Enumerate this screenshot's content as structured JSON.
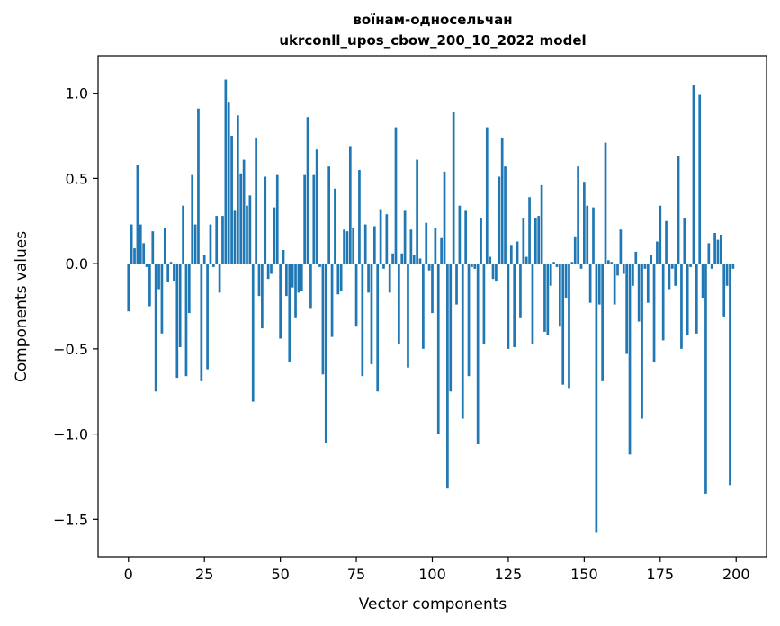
{
  "chart_data": {
    "type": "bar",
    "title_line1": "воїнам-односельчан",
    "title_line2": "ukrconll_upos_cbow_200_10_2022 model",
    "xlabel": "Vector components",
    "ylabel": "Components values",
    "xlim": [
      -10,
      210
    ],
    "ylim": [
      -1.72,
      1.22
    ],
    "xticks": [
      0,
      25,
      50,
      75,
      100,
      125,
      150,
      175,
      200
    ],
    "yticks": [
      -1.5,
      -1.0,
      -0.5,
      0.0,
      0.5,
      1.0
    ],
    "ytick_labels": [
      "−1.5",
      "−1.0",
      "−0.5",
      "0.0",
      "0.5",
      "1.0"
    ],
    "grid": false,
    "bar_color": "#1f77b4",
    "values": [
      -0.28,
      0.23,
      0.09,
      0.58,
      0.23,
      0.12,
      -0.02,
      -0.25,
      0.19,
      -0.75,
      -0.15,
      -0.41,
      0.21,
      -0.11,
      0.01,
      -0.1,
      -0.67,
      -0.49,
      0.34,
      -0.66,
      -0.29,
      0.52,
      0.23,
      0.91,
      -0.69,
      0.05,
      -0.62,
      0.23,
      -0.02,
      0.28,
      -0.17,
      0.28,
      1.08,
      0.95,
      0.75,
      0.31,
      0.87,
      0.53,
      0.61,
      0.34,
      0.4,
      -0.81,
      0.74,
      -0.19,
      -0.38,
      0.51,
      -0.09,
      -0.06,
      0.33,
      0.52,
      -0.44,
      0.08,
      -0.19,
      -0.58,
      -0.14,
      -0.32,
      -0.17,
      -0.16,
      0.52,
      0.86,
      -0.26,
      0.52,
      0.67,
      -0.02,
      -0.65,
      -1.05,
      0.57,
      -0.43,
      0.44,
      -0.18,
      -0.16,
      0.2,
      0.19,
      0.69,
      0.21,
      -0.37,
      0.55,
      -0.66,
      0.23,
      -0.17,
      -0.59,
      0.22,
      -0.75,
      0.32,
      -0.03,
      0.29,
      -0.17,
      0.06,
      0.8,
      -0.47,
      0.06,
      0.31,
      -0.61,
      0.2,
      0.05,
      0.61,
      0.03,
      -0.5,
      0.24,
      -0.04,
      -0.29,
      0.21,
      -1.0,
      0.15,
      0.54,
      -1.32,
      -0.75,
      0.89,
      -0.24,
      0.34,
      -0.91,
      0.31,
      -0.66,
      -0.02,
      -0.03,
      -1.06,
      0.27,
      -0.47,
      0.8,
      0.04,
      -0.09,
      -0.1,
      0.51,
      0.74,
      0.57,
      -0.5,
      0.11,
      -0.49,
      0.13,
      -0.32,
      0.27,
      0.04,
      0.39,
      -0.47,
      0.27,
      0.28,
      0.46,
      -0.4,
      -0.42,
      -0.13,
      0.01,
      -0.02,
      -0.37,
      -0.71,
      -0.2,
      -0.73,
      0.01,
      0.16,
      0.57,
      -0.03,
      0.48,
      0.34,
      -0.23,
      0.33,
      -1.58,
      -0.24,
      -0.69,
      0.71,
      0.02,
      0.01,
      -0.24,
      -0.07,
      0.2,
      -0.06,
      -0.53,
      -1.12,
      -0.13,
      0.07,
      -0.34,
      -0.91,
      -0.03,
      -0.23,
      0.05,
      -0.58,
      0.13,
      0.34,
      -0.45,
      0.25,
      -0.15,
      -0.03,
      -0.13,
      0.63,
      -0.5,
      0.27,
      -0.42,
      -0.02,
      1.05,
      -0.41,
      0.99,
      -0.2,
      -1.35,
      0.12,
      -0.03,
      0.18,
      0.14,
      0.17,
      -0.31,
      -0.13,
      -1.3,
      -0.03
    ]
  }
}
